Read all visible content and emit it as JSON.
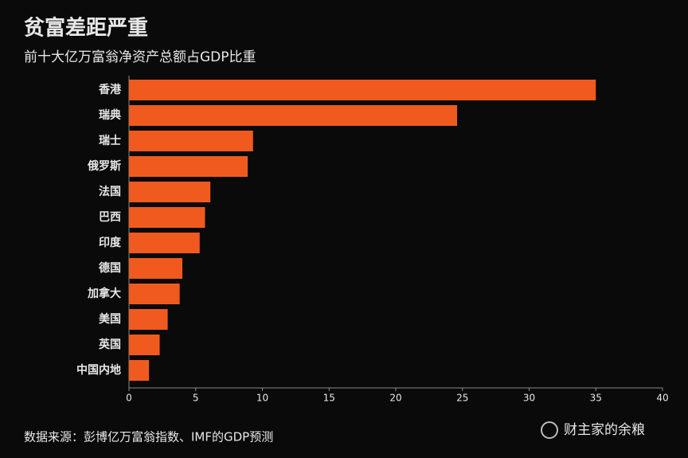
{
  "chart_data": {
    "type": "bar",
    "orientation": "horizontal",
    "title": "贫富差距严重",
    "subtitle": "前十大亿万富翁净资产总额占GDP比重",
    "categories": [
      "香港",
      "瑞典",
      "瑞士",
      "俄罗斯",
      "法国",
      "巴西",
      "印度",
      "德国",
      "加拿大",
      "美国",
      "英国",
      "中国内地"
    ],
    "values": [
      35,
      24.6,
      9.3,
      8.9,
      6.1,
      5.7,
      5.3,
      4.0,
      3.8,
      2.9,
      2.3,
      1.5
    ],
    "color": "#f05a1e",
    "xlim": [
      0,
      40
    ],
    "xticks": [
      0,
      5,
      10,
      15,
      20,
      25,
      30,
      35,
      40
    ],
    "source": "数据来源：彭博亿万富翁指数、IMF的GDP预测",
    "watermark": "财主家的余粮"
  }
}
